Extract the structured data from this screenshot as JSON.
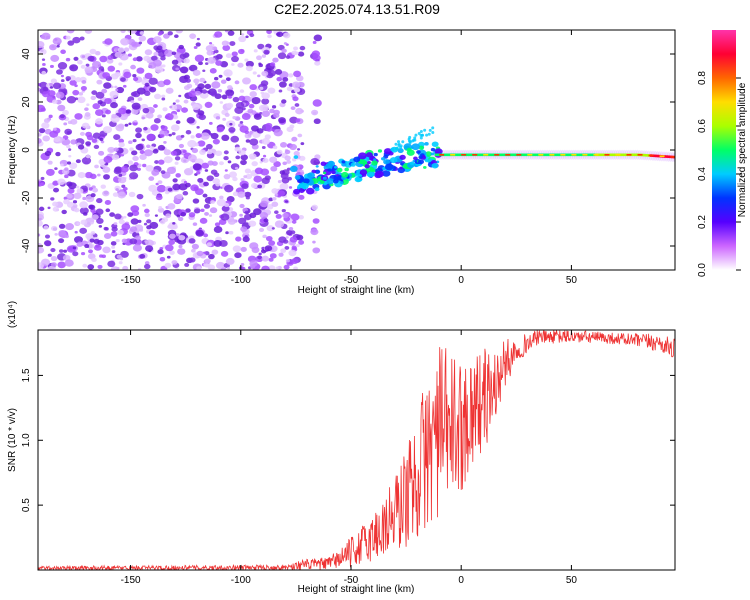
{
  "title": "C2E2.2025.074.13.51.R09",
  "colors": {
    "snr_line": "#ee3333",
    "noise_dots": "#7b2fe0",
    "colormap": [
      "#ffffff",
      "#cc66ff",
      "#5500ff",
      "#0033ff",
      "#00ccff",
      "#00ff66",
      "#aaff00",
      "#ffdd00",
      "#ff6600",
      "#ff0033",
      "#ff33aa"
    ]
  },
  "chart_data": [
    {
      "type": "heatmap",
      "title": "",
      "xlabel": "Height of straight line (km)",
      "ylabel": "Frequency (Hz)",
      "xlim": [
        -192,
        97
      ],
      "ylim": [
        -50,
        50
      ],
      "x_ticks": [
        "-150",
        "-100",
        "-50",
        "0",
        "50"
      ],
      "y_ticks": [
        "-40",
        "-20",
        "0",
        "20",
        "40"
      ],
      "colorbar": {
        "label": "Normalized spectral amplitude",
        "range": [
          0,
          1
        ],
        "ticks": [
          "0.0",
          "0.2",
          "0.4",
          "0.6",
          "0.8"
        ]
      },
      "features": {
        "noise_region_x": [
          -192,
          -65
        ],
        "signal_track": [
          {
            "x": -75,
            "y": -14
          },
          {
            "x": -60,
            "y": -10
          },
          {
            "x": -40,
            "y": -6
          },
          {
            "x": -25,
            "y": -3
          },
          {
            "x": -12,
            "y": -2
          },
          {
            "x": 0,
            "y": -2
          },
          {
            "x": 50,
            "y": -2
          },
          {
            "x": 80,
            "y": -2
          },
          {
            "x": 97,
            "y": -3
          }
        ]
      }
    },
    {
      "type": "line",
      "title": "",
      "xlabel": "Height of straight line (km)",
      "ylabel": "SNR (10 * v/v)",
      "y_multiplier": "(x10⁴)",
      "xlim": [
        -192,
        97
      ],
      "ylim": [
        0,
        1.85
      ],
      "x_ticks": [
        "-150",
        "-100",
        "-50",
        "0",
        "50"
      ],
      "y_ticks": [
        "0.5",
        "1.0",
        "1.5"
      ],
      "series": [
        {
          "name": "",
          "envelope": [
            {
              "x": -192,
              "lo": 0.0,
              "hi": 0.03
            },
            {
              "x": -80,
              "lo": 0.0,
              "hi": 0.04
            },
            {
              "x": -72,
              "lo": 0.0,
              "hi": 0.08
            },
            {
              "x": -60,
              "lo": 0.0,
              "hi": 0.1
            },
            {
              "x": -50,
              "lo": 0.02,
              "hi": 0.25
            },
            {
              "x": -40,
              "lo": 0.05,
              "hi": 0.45
            },
            {
              "x": -30,
              "lo": 0.1,
              "hi": 0.75
            },
            {
              "x": -22,
              "lo": 0.2,
              "hi": 1.1
            },
            {
              "x": -15,
              "lo": 0.3,
              "hi": 1.55
            },
            {
              "x": -10,
              "lo": 0.4,
              "hi": 1.75
            },
            {
              "x": -5,
              "lo": 0.5,
              "hi": 1.7
            },
            {
              "x": 0,
              "lo": 0.6,
              "hi": 1.6
            },
            {
              "x": 5,
              "lo": 0.8,
              "hi": 1.7
            },
            {
              "x": 10,
              "lo": 0.9,
              "hi": 1.72
            },
            {
              "x": 15,
              "lo": 1.1,
              "hi": 1.7
            },
            {
              "x": 20,
              "lo": 1.4,
              "hi": 1.78
            },
            {
              "x": 25,
              "lo": 1.6,
              "hi": 1.8
            },
            {
              "x": 35,
              "lo": 1.74,
              "hi": 1.85
            },
            {
              "x": 50,
              "lo": 1.75,
              "hi": 1.85
            },
            {
              "x": 70,
              "lo": 1.74,
              "hi": 1.83
            },
            {
              "x": 90,
              "lo": 1.68,
              "hi": 1.82
            },
            {
              "x": 97,
              "lo": 1.62,
              "hi": 1.78
            }
          ]
        }
      ]
    }
  ]
}
